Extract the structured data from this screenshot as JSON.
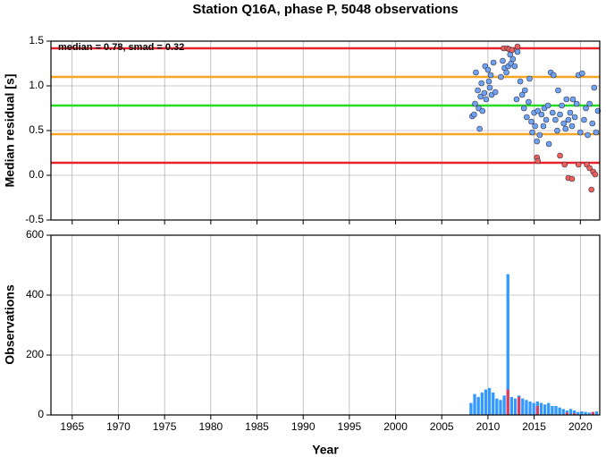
{
  "chart_data": [
    {
      "type": "scatter",
      "title": "Station Q16A, phase P, 5048 observations",
      "y_label": "Median residual [s]",
      "annotation": "median = 0.78, smad = 0.32",
      "xlim": [
        1962.7,
        2022.1
      ],
      "xticks": [
        1965,
        1970,
        1975,
        1980,
        1985,
        1990,
        1995,
        2000,
        2005,
        2010,
        2015,
        2020
      ],
      "ylim": [
        -0.5,
        1.5
      ],
      "yticks": [
        -0.5,
        {
          "value": 0,
          "label": "0.0"
        },
        0.5,
        {
          "value": 1,
          "label": "1.0"
        },
        1.5
      ],
      "grid": true,
      "reference_lines": [
        {
          "value": 1.42,
          "color": "#e8222a"
        },
        {
          "value": 1.1,
          "color": "#f5a623"
        },
        {
          "value": 0.78,
          "color": "#22dd22"
        },
        {
          "value": 0.46,
          "color": "#f5a623"
        },
        {
          "value": 0.14,
          "color": "#e8222a"
        }
      ],
      "series": [
        {
          "color": "#6fa3f5",
          "x": [
            2008.3,
            2008.5,
            2008.6,
            2008.7,
            2008.9,
            2009.0,
            2009.1,
            2009.2,
            2009.3,
            2009.4,
            2009.6,
            2009.7,
            2009.8,
            2010.0,
            2010.1,
            2010.2,
            2010.3,
            2010.4,
            2010.6,
            2010.8,
            2011.4,
            2011.6,
            2011.8,
            2012.0,
            2012.2,
            2012.4,
            2012.5,
            2012.7,
            2012.9,
            2013.1,
            2013.2,
            2013.5,
            2013.7,
            2013.9,
            2014.0,
            2014.2,
            2014.4,
            2014.5,
            2014.7,
            2014.8,
            2015.0,
            2015.1,
            2015.3,
            2015.4,
            2015.6,
            2015.8,
            2016.0,
            2016.1,
            2016.3,
            2016.5,
            2016.6,
            2016.8,
            2017.0,
            2017.1,
            2017.3,
            2017.5,
            2017.6,
            2017.8,
            2018.0,
            2018.2,
            2018.4,
            2018.5,
            2018.7,
            2018.9,
            2019.1,
            2019.2,
            2019.4,
            2019.6,
            2019.8,
            2020.0,
            2020.2,
            2020.4,
            2020.6,
            2020.8,
            2021.0,
            2021.3,
            2021.5,
            2021.7,
            2021.9
          ],
          "values": [
            0.66,
            0.68,
            0.8,
            1.15,
            0.95,
            0.75,
            0.52,
            0.88,
            1.03,
            0.72,
            0.92,
            1.22,
            0.85,
            1.18,
            1.05,
            0.98,
            1.12,
            0.9,
            1.26,
            0.93,
            1.1,
            1.28,
            1.2,
            1.15,
            1.22,
            1.35,
            1.25,
            1.3,
            1.22,
            0.85,
            1.38,
            1.05,
            0.9,
            0.75,
            0.95,
            0.65,
            0.82,
            1.08,
            0.6,
            0.48,
            0.7,
            0.55,
            0.38,
            0.72,
            0.45,
            0.68,
            0.55,
            0.75,
            0.62,
            0.78,
            0.35,
            1.15,
            0.7,
            1.12,
            0.62,
            0.5,
            0.95,
            0.68,
            0.78,
            0.58,
            0.52,
            0.85,
            0.62,
            0.7,
            0.55,
            0.85,
            0.65,
            0.8,
            1.12,
            0.48,
            1.14,
            0.62,
            0.75,
            0.45,
            0.8,
            0.58,
            0.98,
            0.48,
            0.72
          ]
        },
        {
          "color": "#f0605a",
          "x": [
            2011.7,
            2012.1,
            2012.3,
            2012.6,
            2013.2,
            2015.3,
            2015.4,
            2017.8,
            2018.3,
            2018.7,
            2019.1,
            2019.8,
            2020.7,
            2021.0,
            2021.2,
            2021.4,
            2021.6
          ],
          "values": [
            1.42,
            1.42,
            1.41,
            1.4,
            1.44,
            0.2,
            0.16,
            0.22,
            0.12,
            -0.03,
            -0.04,
            0.12,
            0.12,
            0.08,
            -0.16,
            0.04,
            0.01
          ]
        }
      ]
    },
    {
      "type": "histogram",
      "y_label": "Observations",
      "x_label": "Year",
      "xlim": [
        1962.7,
        2022.1
      ],
      "xticks": [
        1965,
        1970,
        1975,
        1980,
        1985,
        1990,
        1995,
        2000,
        2005,
        2010,
        2015,
        2020
      ],
      "ylim": [
        0,
        600
      ],
      "yticks": [
        0,
        200,
        400,
        600
      ],
      "grid": true,
      "x": [
        2008.0,
        2008.4,
        2008.8,
        2009.2,
        2009.6,
        2010.0,
        2010.4,
        2010.8,
        2011.2,
        2011.6,
        2012.0,
        2012.4,
        2012.8,
        2013.2,
        2013.6,
        2014.0,
        2014.4,
        2014.8,
        2015.2,
        2015.6,
        2016.0,
        2016.4,
        2016.8,
        2017.2,
        2017.6,
        2018.0,
        2018.4,
        2018.8,
        2019.2,
        2019.6,
        2020.0,
        2020.4,
        2020.8,
        2021.2,
        2021.6
      ],
      "series": [
        {
          "color": "#3399ff",
          "values": [
            40,
            70,
            60,
            75,
            85,
            90,
            75,
            55,
            50,
            65,
            470,
            60,
            55,
            65,
            55,
            50,
            45,
            40,
            45,
            40,
            35,
            40,
            30,
            30,
            25,
            20,
            15,
            20,
            15,
            10,
            12,
            10,
            8,
            10,
            12
          ]
        },
        {
          "color": "#d94060",
          "values": [
            0,
            0,
            0,
            0,
            0,
            0,
            0,
            0,
            0,
            0,
            85,
            0,
            0,
            60,
            0,
            0,
            0,
            0,
            30,
            0,
            0,
            0,
            0,
            0,
            0,
            0,
            8,
            0,
            6,
            0,
            0,
            0,
            0,
            10,
            0
          ]
        }
      ]
    }
  ]
}
